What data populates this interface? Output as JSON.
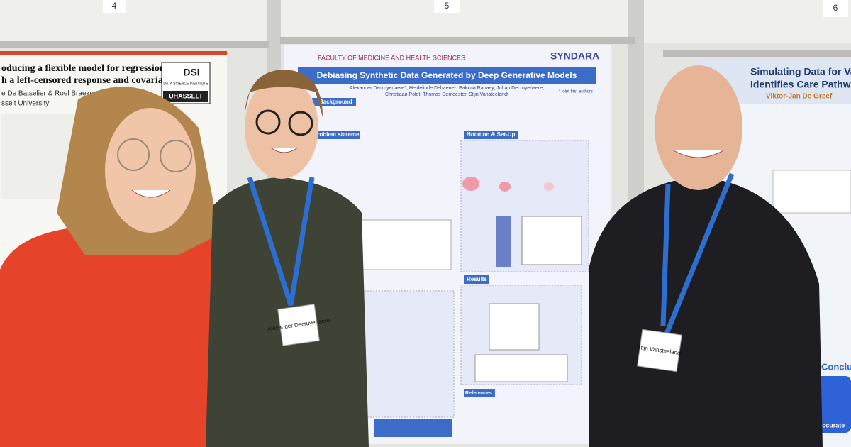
{
  "panels": [
    "4",
    "5",
    "6"
  ],
  "left_poster": {
    "title_lines": [
      "oducing a flexible model for regression models",
      "h a left-censored response and covariate"
    ],
    "authors": "e De Batselier & Roel Braekers",
    "affiliation": "sselt University",
    "logo": {
      "mark": "DSI",
      "name": "DATA SCIENCE INSTITUTE",
      "university": "UHASSELT"
    }
  },
  "center_poster": {
    "faculty": "FACULTY OF MEDICINE AND HEALTH SCIENCES",
    "project": "SYNDARA",
    "title": "Debiasing Synthetic Data Generated by Deep Generative Models",
    "authors_line1": "Alexander Decruyenaere*, Heidelinde Dehaene*, Paloma Rabaey, Johan Decruyenaere,",
    "authors_line2": "Christiaan Polet, Thomas Demeester, Stijn Vansteelandt",
    "note": "* joint first authors",
    "sections": [
      "Background",
      "Problem statement",
      "Notation & Set-Up",
      "Results",
      "References"
    ]
  },
  "right_poster": {
    "title_lines": [
      "Simulating Data for Valida",
      "Identifies Care Pathways"
    ],
    "author": "Viktor-Jan De Greef",
    "conclusion": "Conclusi",
    "button": "Accurate"
  },
  "badges": [
    "Alexander Decruyenaere",
    "Stijn Vansteelandt"
  ]
}
